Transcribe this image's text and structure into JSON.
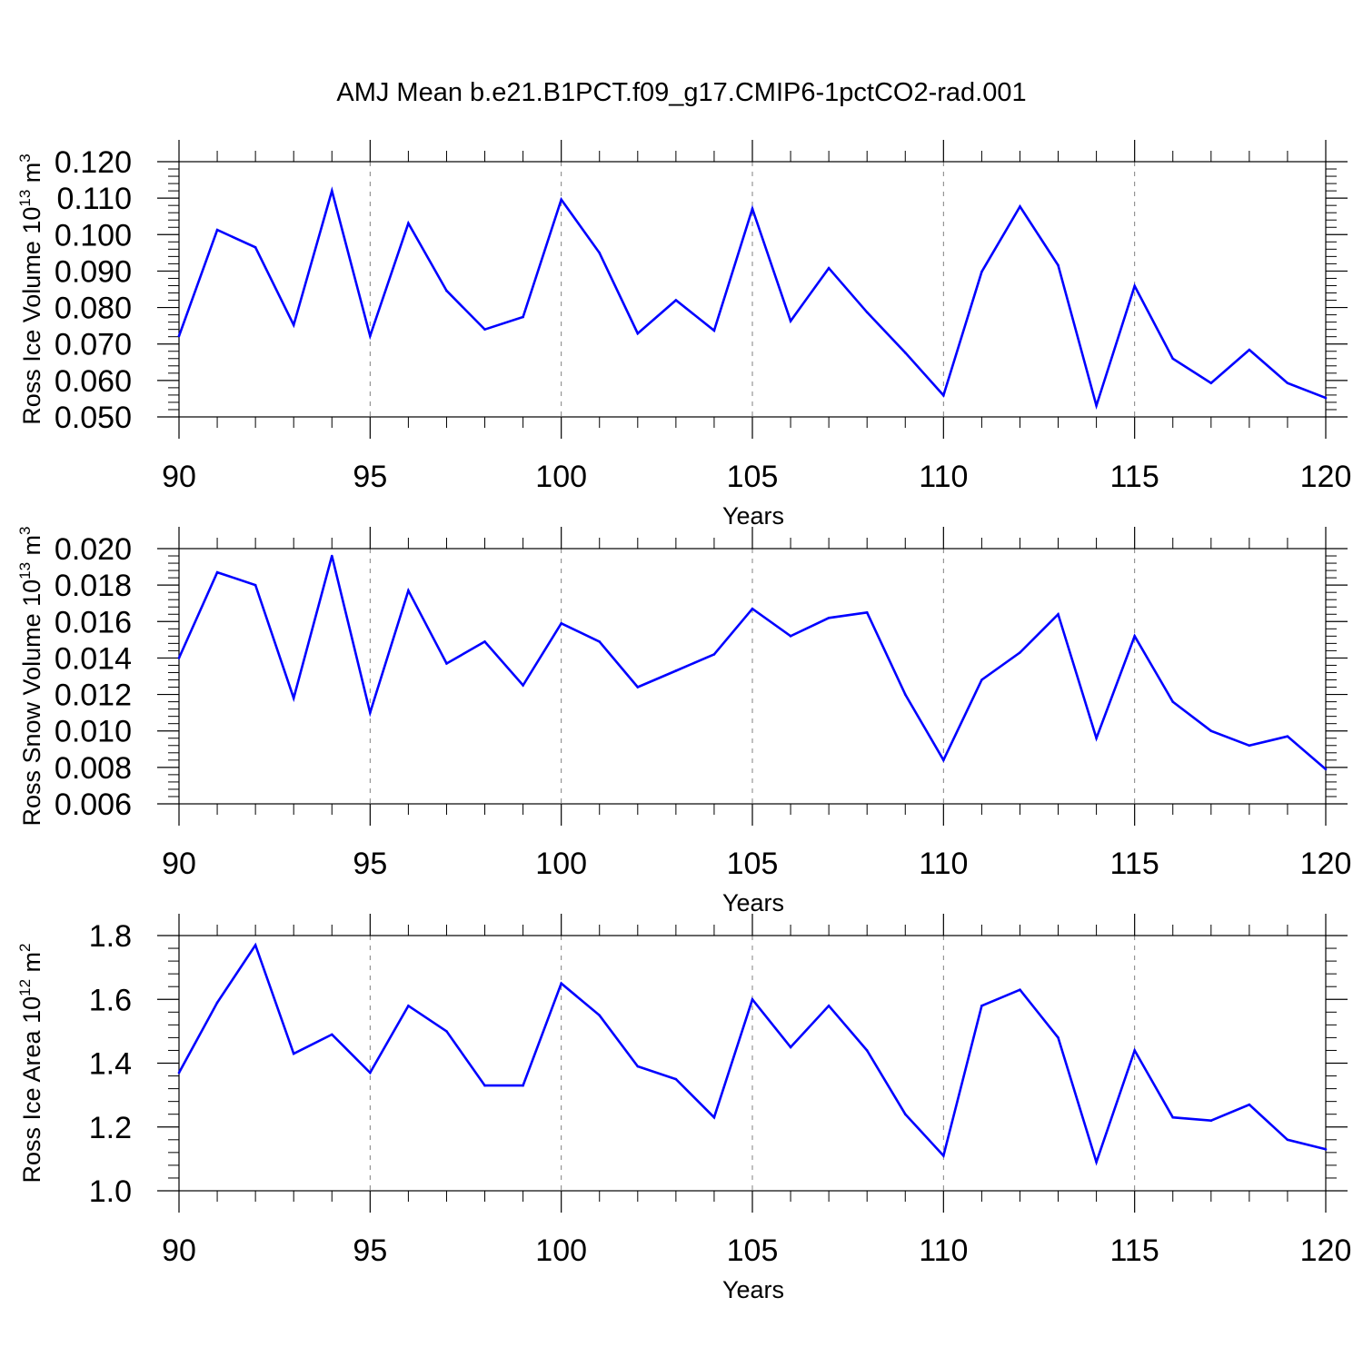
{
  "title": "AMJ Mean b.e21.B1PCT.f09_g17.CMIP6-1pctCO2-rad.001",
  "colors": {
    "line": "#0000ff",
    "axis": "#000000",
    "grid": "#808080"
  },
  "chart_data": [
    {
      "type": "line",
      "ylabel_main": "Ross Ice Volume 10",
      "ylabel_exp": "13",
      "ylabel_unit": " m",
      "ylabel_unit_exp": "3",
      "xlabel": "Years",
      "xlim": [
        90,
        120
      ],
      "ylim": [
        0.05,
        0.12
      ],
      "x_ticks": [
        "90",
        "95",
        "100",
        "105",
        "110",
        "115",
        "120"
      ],
      "y_ticks": [
        "0.050",
        "0.060",
        "0.070",
        "0.080",
        "0.090",
        "0.100",
        "0.110",
        "0.120"
      ],
      "grid": "vertical dashed at x major ticks",
      "x": [
        90,
        91,
        92,
        93,
        94,
        95,
        96,
        97,
        98,
        99,
        100,
        101,
        102,
        103,
        104,
        105,
        106,
        107,
        108,
        109,
        110,
        111,
        112,
        113,
        114,
        115,
        116,
        117,
        118,
        119,
        120
      ],
      "values": [
        0.0722,
        0.1013,
        0.0965,
        0.0752,
        0.112,
        0.0722,
        0.1031,
        0.0846,
        0.074,
        0.0774,
        0.1096,
        0.095,
        0.0729,
        0.082,
        0.0737,
        0.1071,
        0.0763,
        0.0908,
        0.0787,
        0.0676,
        0.0559,
        0.0898,
        0.1077,
        0.0916,
        0.0531,
        0.0859,
        0.066,
        0.0593,
        0.0684,
        0.0593,
        0.0552
      ]
    },
    {
      "type": "line",
      "ylabel_main": "Ross Snow Volume 10",
      "ylabel_exp": "13",
      "ylabel_unit": " m",
      "ylabel_unit_exp": "3",
      "xlabel": "Years",
      "xlim": [
        90,
        120
      ],
      "ylim": [
        0.006,
        0.02
      ],
      "x_ticks": [
        "90",
        "95",
        "100",
        "105",
        "110",
        "115",
        "120"
      ],
      "y_ticks": [
        "0.006",
        "0.008",
        "0.010",
        "0.012",
        "0.014",
        "0.016",
        "0.018",
        "0.020"
      ],
      "grid": "vertical dashed at x major ticks",
      "x": [
        90,
        91,
        92,
        93,
        94,
        95,
        96,
        97,
        98,
        99,
        100,
        101,
        102,
        103,
        104,
        105,
        106,
        107,
        108,
        109,
        110,
        111,
        112,
        113,
        114,
        115,
        116,
        117,
        118,
        119,
        120
      ],
      "values": [
        0.014,
        0.0187,
        0.018,
        0.0118,
        0.0196,
        0.011,
        0.0177,
        0.0137,
        0.0149,
        0.0125,
        0.0159,
        0.0149,
        0.0124,
        0.0133,
        0.0142,
        0.0167,
        0.0152,
        0.0162,
        0.0165,
        0.012,
        0.0084,
        0.0128,
        0.0143,
        0.0164,
        0.0096,
        0.0152,
        0.0116,
        0.01,
        0.0092,
        0.0097,
        0.0079
      ]
    },
    {
      "type": "line",
      "ylabel_main": "Ross Ice Area 10",
      "ylabel_exp": "12",
      "ylabel_unit": " m",
      "ylabel_unit_exp": "2",
      "xlabel": "Years",
      "xlim": [
        90,
        120
      ],
      "ylim": [
        1.0,
        1.8
      ],
      "x_ticks": [
        "90",
        "95",
        "100",
        "105",
        "110",
        "115",
        "120"
      ],
      "y_ticks": [
        "1.0",
        "1.2",
        "1.4",
        "1.6",
        "1.8"
      ],
      "grid": "vertical dashed at x major ticks",
      "x": [
        90,
        91,
        92,
        93,
        94,
        95,
        96,
        97,
        98,
        99,
        100,
        101,
        102,
        103,
        104,
        105,
        106,
        107,
        108,
        109,
        110,
        111,
        112,
        113,
        114,
        115,
        116,
        117,
        118,
        119,
        120
      ],
      "values": [
        1.37,
        1.59,
        1.77,
        1.43,
        1.49,
        1.37,
        1.58,
        1.5,
        1.33,
        1.33,
        1.65,
        1.55,
        1.39,
        1.35,
        1.23,
        1.6,
        1.45,
        1.58,
        1.44,
        1.24,
        1.11,
        1.58,
        1.63,
        1.48,
        1.09,
        1.44,
        1.23,
        1.22,
        1.27,
        1.16,
        1.13
      ]
    }
  ]
}
